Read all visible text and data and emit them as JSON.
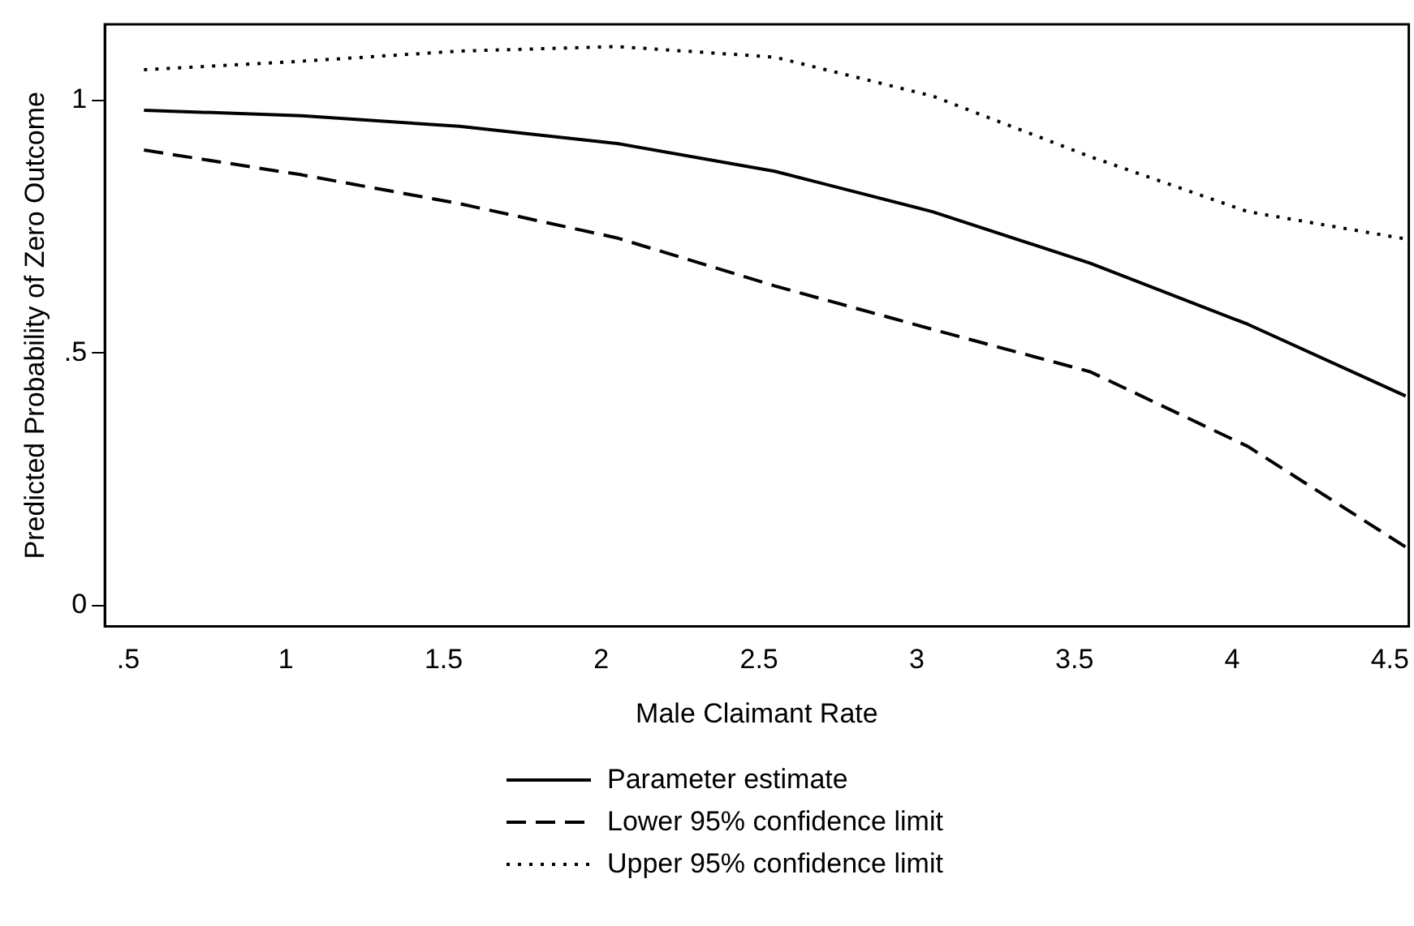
{
  "chart_data": {
    "type": "line",
    "xlabel": "Male Claimant Rate",
    "ylabel": "Predicted Probability of Zero Outcome",
    "x": [
      0.55,
      1.05,
      1.55,
      2.05,
      2.55,
      3.05,
      3.55,
      4.05,
      4.55
    ],
    "series": [
      {
        "name": "Parameter estimate",
        "color": "#000000",
        "line_style": "solid",
        "values": [
          0.981,
          0.97,
          0.949,
          0.915,
          0.86,
          0.78,
          0.678,
          0.557,
          0.415
        ]
      },
      {
        "name": "Lower 95% confidence limit",
        "color": "#000000",
        "line_style": "dashed",
        "values": [
          0.902,
          0.853,
          0.796,
          0.728,
          0.633,
          0.547,
          0.463,
          0.315,
          0.116
        ]
      },
      {
        "name": "Upper 95% confidence limit",
        "color": "#000000",
        "line_style": "dotted",
        "values": [
          1.061,
          1.078,
          1.098,
          1.107,
          1.086,
          1.009,
          0.889,
          0.78,
          0.726
        ]
      }
    ],
    "xlim": [
      0.426,
      4.56
    ],
    "xticks": [
      {
        "value": 0.5,
        "label": ".5"
      },
      1,
      1.5,
      2,
      2.5,
      3,
      3.5,
      4,
      4.5
    ],
    "ylim": [
      -0.041,
      1.151
    ],
    "yticks": [
      0,
      {
        "value": 0.5,
        "label": ".5"
      },
      1
    ],
    "grid": false,
    "legend": "bottom",
    "marker": "none"
  }
}
